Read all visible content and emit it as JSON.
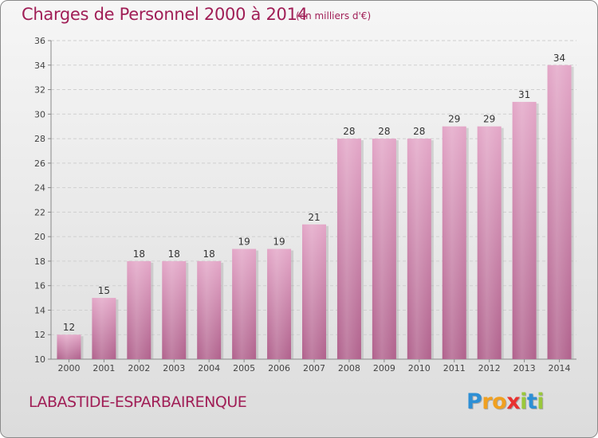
{
  "header": {
    "title": "Charges de Personnel 2000 à 2014",
    "subtitle": "(en milliers d'€)"
  },
  "footer": {
    "town": "LABASTIDE-ESPARBAIRENQUE",
    "logo_letters": [
      "P",
      "r",
      "o",
      "x",
      "i",
      "t",
      "i"
    ],
    "logo_colors": [
      "#2d8fd5",
      "#f0a020",
      "#f0a020",
      "#e8312f",
      "#9ac83c",
      "#2d8fd5",
      "#9ac83c"
    ]
  },
  "chart_data": {
    "type": "bar",
    "title": "Charges de Personnel 2000 à 2014",
    "subtitle": "(en milliers d'€)",
    "categories": [
      "2000",
      "2001",
      "2002",
      "2003",
      "2004",
      "2005",
      "2006",
      "2007",
      "2008",
      "2009",
      "2010",
      "2011",
      "2012",
      "2013",
      "2014"
    ],
    "values": [
      12,
      15,
      18,
      18,
      18,
      19,
      19,
      21,
      28,
      28,
      28,
      29,
      29,
      31,
      34
    ],
    "ylim": [
      10,
      36
    ],
    "yticks": [
      10,
      12,
      14,
      16,
      18,
      20,
      22,
      24,
      26,
      28,
      30,
      32,
      34,
      36
    ],
    "grid": true,
    "bar_color": "#d98ab5",
    "xlabel": "",
    "ylabel": ""
  }
}
